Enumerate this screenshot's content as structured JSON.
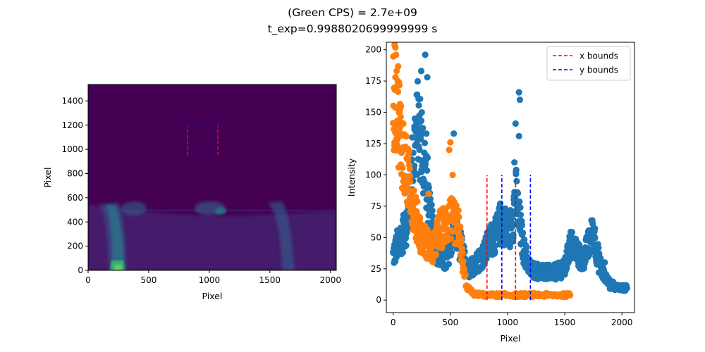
{
  "figure": {
    "title_line1": "(Green CPS) = 2.7e+09",
    "title_line2": "t_exp=0.9988020699999999 s"
  },
  "chart_data": [
    {
      "type": "heatmap",
      "xlabel": "Pixel",
      "ylabel": "Pixel",
      "xlim": [
        0,
        2048
      ],
      "ylim": [
        0,
        1536
      ],
      "xticks": [
        0,
        500,
        1000,
        1500,
        2000
      ],
      "yticks": [
        0,
        200,
        400,
        600,
        800,
        1000,
        1200,
        1400
      ],
      "colormap": "viridis",
      "box": {
        "x_bounds": [
          820,
          1070
        ],
        "y_bounds": [
          950,
          1200
        ],
        "x_color": "#ff0000",
        "y_color": "#0000ff"
      }
    },
    {
      "type": "scatter",
      "xlabel": "Pixel",
      "ylabel": "Intensity",
      "xlim": [
        -60,
        2110
      ],
      "ylim": [
        -10,
        206
      ],
      "xticks": [
        0,
        500,
        1000,
        1500,
        2000
      ],
      "yticks": [
        0,
        25,
        50,
        75,
        100,
        125,
        150,
        175,
        200
      ],
      "legend_position": "top-right",
      "legend": [
        {
          "label": "x bounds",
          "color": "#ff0000"
        },
        {
          "label": "y bounds",
          "color": "#0000ff"
        }
      ],
      "vlines": [
        {
          "x": 820,
          "ymin": 0,
          "ymax": 100,
          "color": "#ff0000",
          "style": "dashed"
        },
        {
          "x": 1070,
          "ymin": 0,
          "ymax": 100,
          "color": "#ff0000",
          "style": "dashed"
        },
        {
          "x": 950,
          "ymin": 0,
          "ymax": 100,
          "color": "#0000ff",
          "style": "dashed"
        },
        {
          "x": 1200,
          "ymin": 0,
          "ymax": 100,
          "color": "#0000ff",
          "style": "dashed"
        }
      ],
      "series": [
        {
          "color": "#1f77b4",
          "profile": [
            [
              0,
              35
            ],
            [
              40,
              45
            ],
            [
              100,
              55
            ],
            [
              140,
              70
            ],
            [
              180,
              120
            ],
            [
              220,
              140
            ],
            [
              250,
              120
            ],
            [
              280,
              105
            ],
            [
              300,
              90
            ],
            [
              320,
              65
            ],
            [
              350,
              55
            ],
            [
              380,
              40
            ],
            [
              420,
              35
            ],
            [
              460,
              30
            ],
            [
              500,
              45
            ],
            [
              530,
              60
            ],
            [
              560,
              50
            ],
            [
              600,
              40
            ],
            [
              650,
              22
            ],
            [
              700,
              28
            ],
            [
              750,
              32
            ],
            [
              800,
              38
            ],
            [
              850,
              48
            ],
            [
              900,
              52
            ],
            [
              950,
              65
            ],
            [
              1000,
              55
            ],
            [
              1040,
              60
            ],
            [
              1070,
              85
            ],
            [
              1100,
              65
            ],
            [
              1140,
              40
            ],
            [
              1200,
              25
            ],
            [
              1300,
              22
            ],
            [
              1400,
              22
            ],
            [
              1500,
              25
            ],
            [
              1550,
              45
            ],
            [
              1600,
              40
            ],
            [
              1650,
              30
            ],
            [
              1700,
              42
            ],
            [
              1750,
              55
            ],
            [
              1800,
              30
            ],
            [
              1850,
              18
            ],
            [
              1900,
              12
            ],
            [
              1950,
              11
            ],
            [
              2000,
              10
            ],
            [
              2048,
              9
            ]
          ],
          "peaks": [
            [
              280,
              196
            ],
            [
              245,
              183
            ],
            [
              298,
              178
            ],
            [
              1100,
              166
            ],
            [
              1108,
              160
            ],
            [
              1070,
              141
            ],
            [
              1100,
              131
            ],
            [
              290,
              133
            ],
            [
              530,
              133
            ],
            [
              250,
              150
            ],
            [
              1060,
              110
            ],
            [
              1740,
              63
            ],
            [
              1760,
              55
            ],
            [
              1850,
              30
            ]
          ]
        },
        {
          "color": "#ff7f0e",
          "profile": [
            [
              0,
              160
            ],
            [
              20,
              170
            ],
            [
              40,
              155
            ],
            [
              60,
              135
            ],
            [
              90,
              115
            ],
            [
              120,
              100
            ],
            [
              150,
              90
            ],
            [
              200,
              65
            ],
            [
              250,
              50
            ],
            [
              300,
              45
            ],
            [
              350,
              40
            ],
            [
              400,
              55
            ],
            [
              450,
              60
            ],
            [
              500,
              65
            ],
            [
              550,
              60
            ],
            [
              580,
              55
            ],
            [
              600,
              35
            ],
            [
              620,
              20
            ],
            [
              650,
              10
            ],
            [
              700,
              5
            ],
            [
              800,
              4
            ],
            [
              900,
              4
            ],
            [
              1000,
              4
            ],
            [
              1100,
              4
            ],
            [
              1200,
              4
            ],
            [
              1300,
              4
            ],
            [
              1400,
              4
            ],
            [
              1550,
              4
            ]
          ],
          "peaks": [
            [
              25,
              196
            ],
            [
              30,
              183
            ],
            [
              20,
              178
            ],
            [
              40,
              175
            ],
            [
              15,
              168
            ],
            [
              50,
              150
            ],
            [
              310,
              85
            ],
            [
              500,
              126
            ],
            [
              490,
              120
            ],
            [
              520,
              100
            ]
          ]
        }
      ]
    }
  ]
}
